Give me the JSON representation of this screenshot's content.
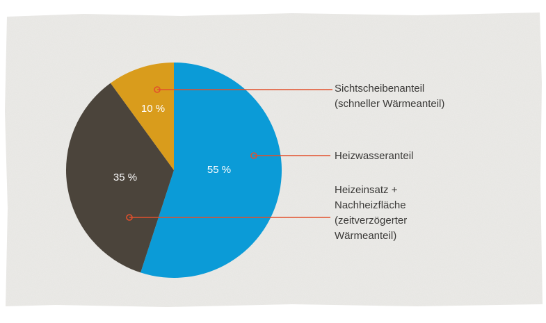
{
  "chart_data": {
    "type": "pie",
    "categories": [
      "Heizwasseranteil",
      "Heizeinsatz +\nNachheizfläche\n(zeitverzögerter\nWärmeanteil)",
      "Sichtscheibenanteil\n(schneller Wärmeanteil)"
    ],
    "values": [
      55,
      35,
      10
    ],
    "value_labels": [
      "55 %",
      "35 %",
      "10 %"
    ],
    "colors": [
      "#0b9bd7",
      "#4b443b",
      "#d99c1c"
    ]
  }
}
